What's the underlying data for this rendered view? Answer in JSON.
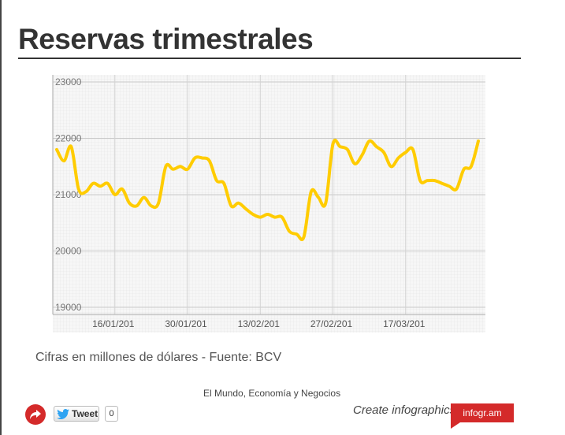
{
  "title": "Reservas trimestrales",
  "caption": "Cifras en millones de dólares - Fuente: BCV",
  "source": "El Mundo, Economía y Negocios",
  "footer": {
    "tweet_label": "Tweet",
    "tweet_count": "0",
    "create_label": "Create infographics",
    "brand_label": "infogr.am"
  },
  "colors": {
    "line": "#ffcc00",
    "accent": "#d42a2a"
  },
  "icons": {
    "share": "share-arrow-icon",
    "twitter": "twitter-bird-icon"
  },
  "chart_data": {
    "type": "line",
    "title": "",
    "xlabel": "",
    "ylabel": "",
    "ylim": [
      19000,
      23000
    ],
    "yticks": [
      "19000",
      "20000",
      "21000",
      "22000",
      "23000"
    ],
    "xticks": [
      {
        "label": "16/01/201",
        "x": 8
      },
      {
        "label": "30/01/201",
        "x": 18
      },
      {
        "label": "13/02/201",
        "x": 28
      },
      {
        "label": "27/02/201",
        "x": 38
      },
      {
        "label": "17/03/201",
        "x": 48
      }
    ],
    "grid": true,
    "series": [
      {
        "name": "",
        "x": [
          0,
          1,
          2,
          3,
          4,
          5,
          6,
          7,
          8,
          9,
          10,
          11,
          12,
          13,
          14,
          15,
          16,
          17,
          18,
          19,
          20,
          21,
          22,
          23,
          24,
          25,
          26,
          27,
          28,
          29,
          30,
          31,
          32,
          33,
          34,
          35,
          36,
          37,
          38,
          39,
          40,
          41,
          42,
          43,
          44,
          45,
          46,
          47,
          48,
          49,
          50,
          51,
          52,
          53,
          54,
          55,
          56,
          57,
          58
        ],
        "values": [
          21800,
          21600,
          21850,
          21100,
          21050,
          21200,
          21150,
          21200,
          21000,
          21100,
          20850,
          20800,
          20950,
          20800,
          20850,
          21500,
          21450,
          21500,
          21450,
          21650,
          21650,
          21600,
          21250,
          21200,
          20800,
          20850,
          20750,
          20650,
          20600,
          20650,
          20600,
          20600,
          20350,
          20300,
          20250,
          21050,
          20950,
          20850,
          21900,
          21850,
          21800,
          21550,
          21700,
          21950,
          21850,
          21750,
          21500,
          21650,
          21750,
          21800,
          21250,
          21250,
          21250,
          21200,
          21150,
          21100,
          21450,
          21500,
          21950
        ]
      }
    ]
  }
}
